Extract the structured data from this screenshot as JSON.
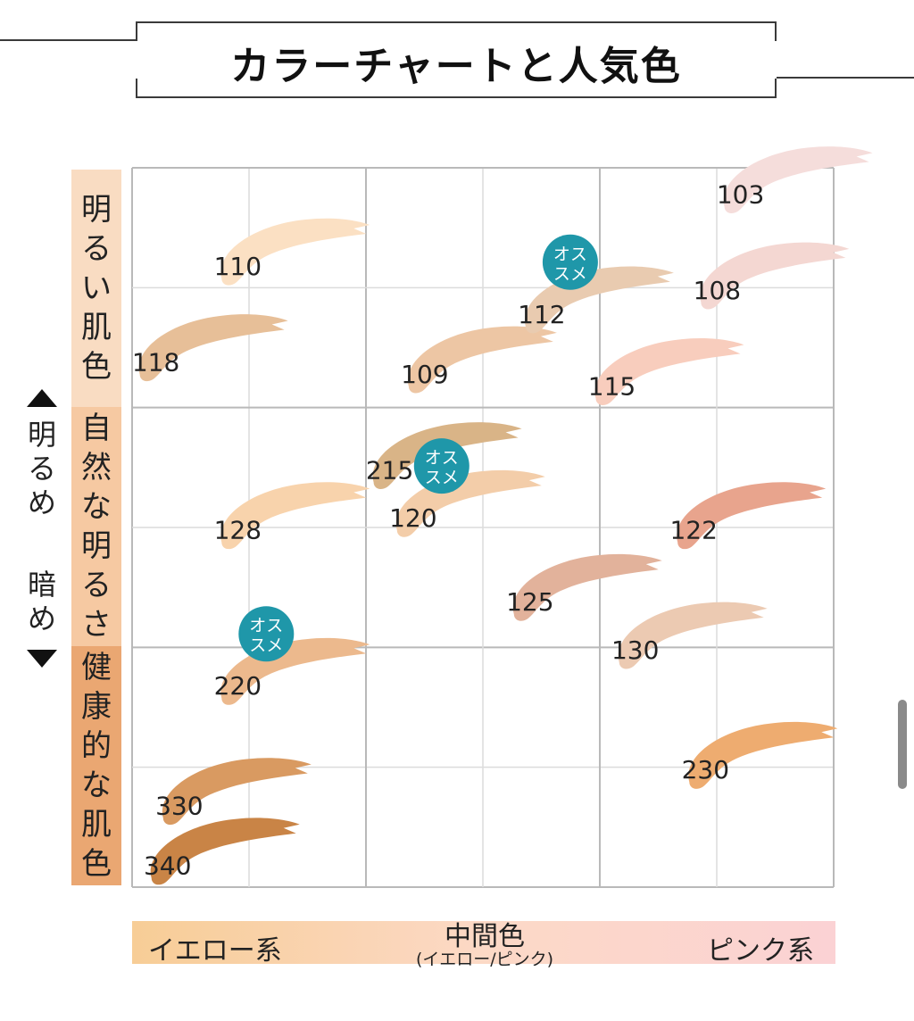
{
  "title": "カラーチャートと人気色",
  "rows": [
    {
      "label": "明るい肌色",
      "color": "#f9dcc2"
    },
    {
      "label": "自然な明るさ",
      "color": "#f6c9a2"
    },
    {
      "label": "健康的な肌色",
      "color": "#eaa772"
    }
  ],
  "side": {
    "up_label": "明るめ",
    "down_label": "暗め"
  },
  "xaxis": {
    "left": "イエロー系",
    "middle": "中間色",
    "middle_sub": "(イエロー/ピンク)",
    "right": "ピンク系",
    "gradient": [
      "#f7cd96",
      "#fcd9c6",
      "#fbd2d4"
    ]
  },
  "badge": {
    "line1": "オス",
    "line2": "スメ",
    "color": "#1f97a9"
  },
  "chart_data": {
    "type": "scatter",
    "title": "カラーチャートと人気色",
    "xlabel": "",
    "ylabel": "",
    "xlim": [
      0,
      6
    ],
    "ylim": [
      0,
      6
    ],
    "x_categories": [
      "イエロー系",
      "中間色",
      "ピンク系"
    ],
    "y_categories": [
      "明るい肌色",
      "自然な明るさ",
      "健康的な肌色"
    ],
    "grid": true,
    "points": [
      {
        "label": "110",
        "x": 1.3,
        "y": 5.3,
        "color": "#fbe0c3",
        "recommended": false
      },
      {
        "label": "118",
        "x": 0.6,
        "y": 4.5,
        "color": "#e7bf98",
        "recommended": false
      },
      {
        "label": "109",
        "x": 2.9,
        "y": 4.4,
        "color": "#edc6a4",
        "recommended": false
      },
      {
        "label": "112",
        "x": 3.9,
        "y": 4.9,
        "color": "#e9cbb0",
        "recommended": true
      },
      {
        "label": "103",
        "x": 5.6,
        "y": 5.9,
        "color": "#f5dddb",
        "recommended": false
      },
      {
        "label": "108",
        "x": 5.4,
        "y": 5.1,
        "color": "#f4d7d2",
        "recommended": false
      },
      {
        "label": "115",
        "x": 4.5,
        "y": 4.3,
        "color": "#f8cdbd",
        "recommended": false
      },
      {
        "label": "215",
        "x": 2.6,
        "y": 3.6,
        "color": "#d9b487",
        "recommended": false
      },
      {
        "label": "128",
        "x": 1.3,
        "y": 3.1,
        "color": "#f8d3ac",
        "recommended": false
      },
      {
        "label": "120",
        "x": 2.8,
        "y": 3.2,
        "color": "#f3cda9",
        "recommended": true
      },
      {
        "label": "122",
        "x": 5.2,
        "y": 3.1,
        "color": "#e8a48d",
        "recommended": false
      },
      {
        "label": "125",
        "x": 3.8,
        "y": 2.5,
        "color": "#e2b29b",
        "recommended": false
      },
      {
        "label": "130",
        "x": 4.7,
        "y": 2.1,
        "color": "#eccab2",
        "recommended": false
      },
      {
        "label": "220",
        "x": 1.3,
        "y": 1.8,
        "color": "#ecb98d",
        "recommended": true
      },
      {
        "label": "230",
        "x": 5.3,
        "y": 1.1,
        "color": "#eeac70",
        "recommended": false
      },
      {
        "label": "330",
        "x": 0.8,
        "y": 0.8,
        "color": "#d99a61",
        "recommended": false
      },
      {
        "label": "340",
        "x": 0.7,
        "y": 0.3,
        "color": "#c98446",
        "recommended": false
      }
    ]
  }
}
